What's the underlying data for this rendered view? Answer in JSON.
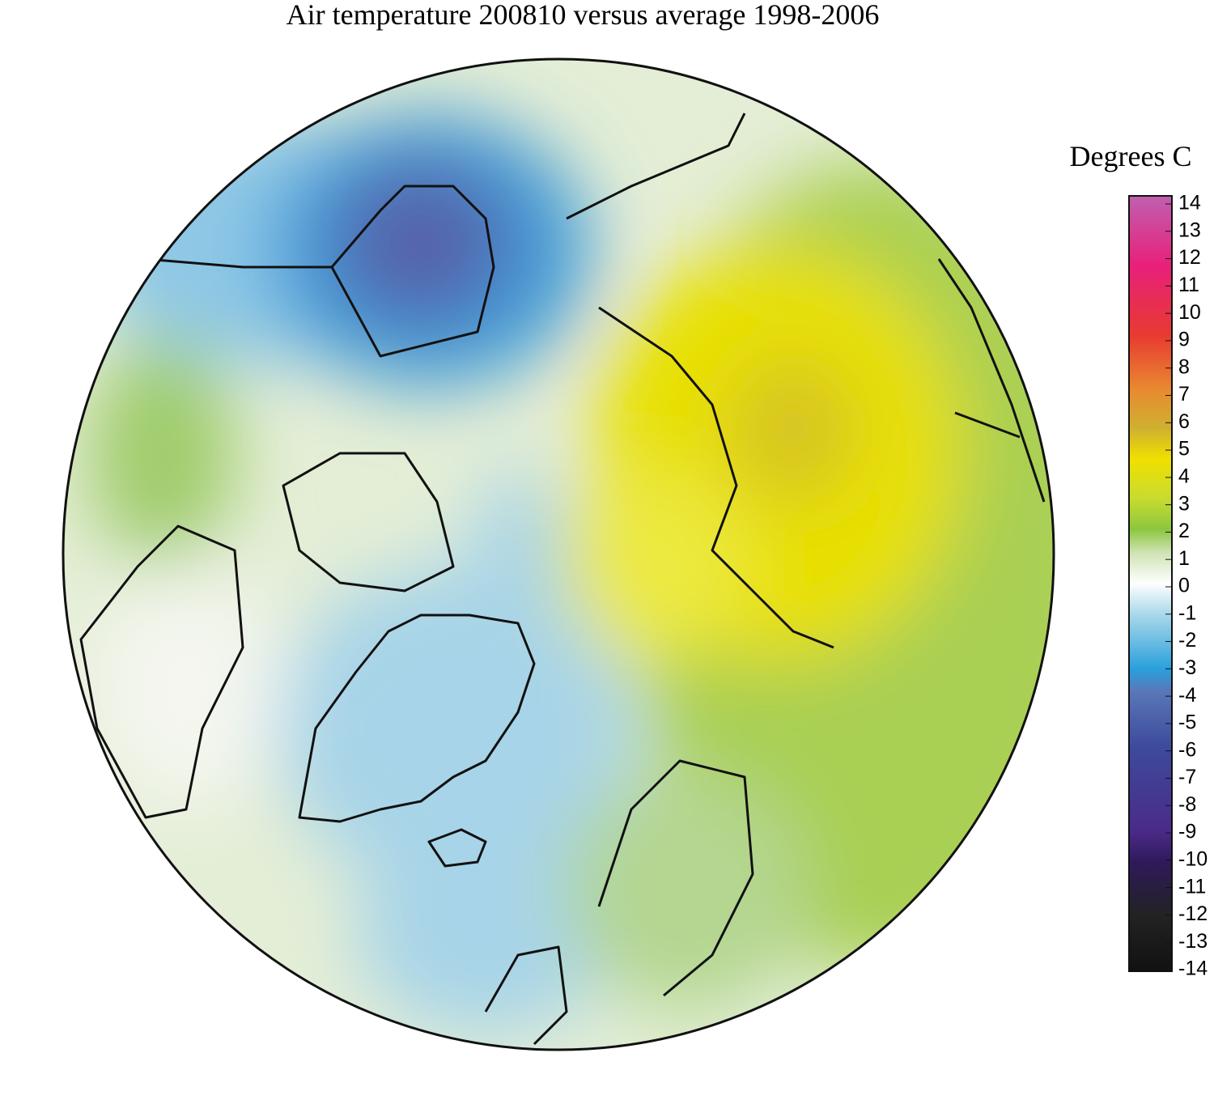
{
  "title": "Air temperature 200810 versus average 1998-2006",
  "colorbar": {
    "label": "Degrees C",
    "range": [
      -14,
      14
    ],
    "ticks": [
      14,
      13,
      12,
      11,
      10,
      9,
      8,
      7,
      6,
      5,
      4,
      3,
      2,
      1,
      0,
      -1,
      -2,
      -3,
      -4,
      -5,
      -6,
      -7,
      -8,
      -9,
      -10,
      -11,
      -12,
      -13,
      -14
    ]
  }
}
